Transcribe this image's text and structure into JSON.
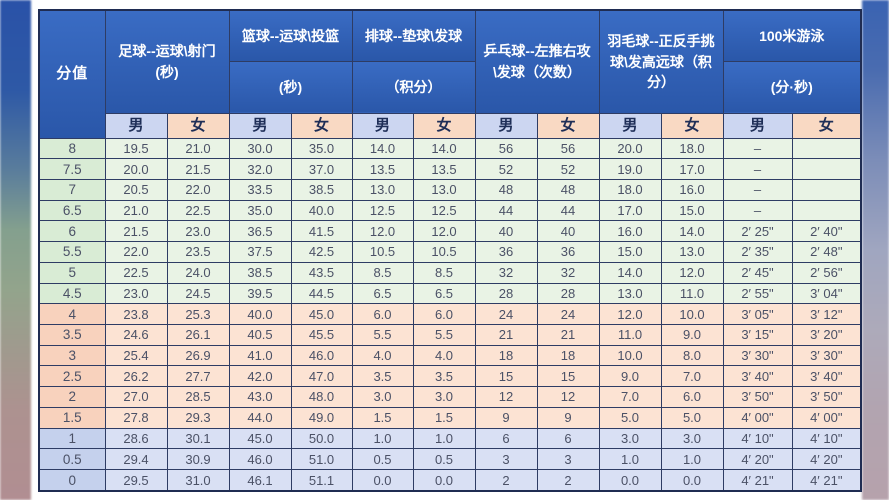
{
  "chart_data": {
    "type": "table",
    "score_column_header": "分值",
    "gender_labels": {
      "male": "男",
      "female": "女"
    },
    "column_groups": [
      {
        "name": "足球--运球\\射门",
        "unit": "(秒)",
        "split_header": false
      },
      {
        "name": "篮球--运球\\投篮",
        "unit": "(秒)",
        "split_header": true
      },
      {
        "name": "排球--垫球\\发球",
        "unit": "（积分）",
        "split_header": true
      },
      {
        "name": "乒乓球--左推右攻\\发球",
        "unit": "（次数）",
        "split_header": false
      },
      {
        "name": "羽毛球--正反手挑球\\发高远球",
        "unit": "（积分）",
        "split_header": false
      },
      {
        "name": "100米游泳",
        "unit": "(分·秒)",
        "split_header": true
      }
    ],
    "rows": [
      {
        "score": "8",
        "band": "green",
        "values": [
          "19.5",
          "21.0",
          "30.0",
          "35.0",
          "14.0",
          "14.0",
          "56",
          "56",
          "20.0",
          "18.0",
          "–",
          ""
        ]
      },
      {
        "score": "7.5",
        "band": "green",
        "values": [
          "20.0",
          "21.5",
          "32.0",
          "37.0",
          "13.5",
          "13.5",
          "52",
          "52",
          "19.0",
          "17.0",
          "–",
          ""
        ]
      },
      {
        "score": "7",
        "band": "green",
        "values": [
          "20.5",
          "22.0",
          "33.5",
          "38.5",
          "13.0",
          "13.0",
          "48",
          "48",
          "18.0",
          "16.0",
          "–",
          ""
        ]
      },
      {
        "score": "6.5",
        "band": "green",
        "values": [
          "21.0",
          "22.5",
          "35.0",
          "40.0",
          "12.5",
          "12.5",
          "44",
          "44",
          "17.0",
          "15.0",
          "–",
          ""
        ]
      },
      {
        "score": "6",
        "band": "green",
        "values": [
          "21.5",
          "23.0",
          "36.5",
          "41.5",
          "12.0",
          "12.0",
          "40",
          "40",
          "16.0",
          "14.0",
          "2′ 25\"",
          "2′ 40\""
        ]
      },
      {
        "score": "5.5",
        "band": "green",
        "values": [
          "22.0",
          "23.5",
          "37.5",
          "42.5",
          "10.5",
          "10.5",
          "36",
          "36",
          "15.0",
          "13.0",
          "2′ 35\"",
          "2′ 48\""
        ]
      },
      {
        "score": "5",
        "band": "green",
        "values": [
          "22.5",
          "24.0",
          "38.5",
          "43.5",
          "8.5",
          "8.5",
          "32",
          "32",
          "14.0",
          "12.0",
          "2′ 45\"",
          "2′ 56\""
        ]
      },
      {
        "score": "4.5",
        "band": "green",
        "values": [
          "23.0",
          "24.5",
          "39.5",
          "44.5",
          "6.5",
          "6.5",
          "28",
          "28",
          "13.0",
          "11.0",
          "2′ 55\"",
          "3′ 04\""
        ]
      },
      {
        "score": "4",
        "band": "peach",
        "values": [
          "23.8",
          "25.3",
          "40.0",
          "45.0",
          "6.0",
          "6.0",
          "24",
          "24",
          "12.0",
          "10.0",
          "3′ 05\"",
          "3′ 12\""
        ]
      },
      {
        "score": "3.5",
        "band": "peach",
        "values": [
          "24.6",
          "26.1",
          "40.5",
          "45.5",
          "5.5",
          "5.5",
          "21",
          "21",
          "11.0",
          "9.0",
          "3′ 15\"",
          "3′ 20\""
        ]
      },
      {
        "score": "3",
        "band": "peach",
        "values": [
          "25.4",
          "26.9",
          "41.0",
          "46.0",
          "4.0",
          "4.0",
          "18",
          "18",
          "10.0",
          "8.0",
          "3′ 30\"",
          "3′ 30\""
        ]
      },
      {
        "score": "2.5",
        "band": "peach",
        "values": [
          "26.2",
          "27.7",
          "42.0",
          "47.0",
          "3.5",
          "3.5",
          "15",
          "15",
          "9.0",
          "7.0",
          "3′ 40\"",
          "3′ 40\""
        ]
      },
      {
        "score": "2",
        "band": "peach",
        "values": [
          "27.0",
          "28.5",
          "43.0",
          "48.0",
          "3.0",
          "3.0",
          "12",
          "12",
          "7.0",
          "6.0",
          "3′ 50\"",
          "3′ 50\""
        ]
      },
      {
        "score": "1.5",
        "band": "peach",
        "values": [
          "27.8",
          "29.3",
          "44.0",
          "49.0",
          "1.5",
          "1.5",
          "9",
          "9",
          "5.0",
          "5.0",
          "4′ 00\"",
          "4′ 00\""
        ]
      },
      {
        "score": "1",
        "band": "blue",
        "values": [
          "28.6",
          "30.1",
          "45.0",
          "50.0",
          "1.0",
          "1.0",
          "6",
          "6",
          "3.0",
          "3.0",
          "4′ 10\"",
          "4′ 10\""
        ]
      },
      {
        "score": "0.5",
        "band": "blue",
        "values": [
          "29.4",
          "30.9",
          "46.0",
          "51.0",
          "0.5",
          "0.5",
          "3",
          "3",
          "1.0",
          "1.0",
          "4′ 20\"",
          "4′ 20\""
        ]
      },
      {
        "score": "0",
        "band": "blue",
        "values": [
          "29.5",
          "31.0",
          "46.1",
          "51.1",
          "0.0",
          "0.0",
          "2",
          "2",
          "0.0",
          "0.0",
          "4′ 21\"",
          "4′ 21\""
        ]
      }
    ]
  },
  "colors": {
    "header_blue": "#2d5fb5",
    "male_header_bg": "#ccd6f1",
    "female_header_bg": "#f9d9c3",
    "band_green_bg": "#e9f3e5",
    "band_peach_bg": "#fce3d3",
    "band_blue_bg": "#d9e0f4",
    "border": "#2e3c64"
  }
}
